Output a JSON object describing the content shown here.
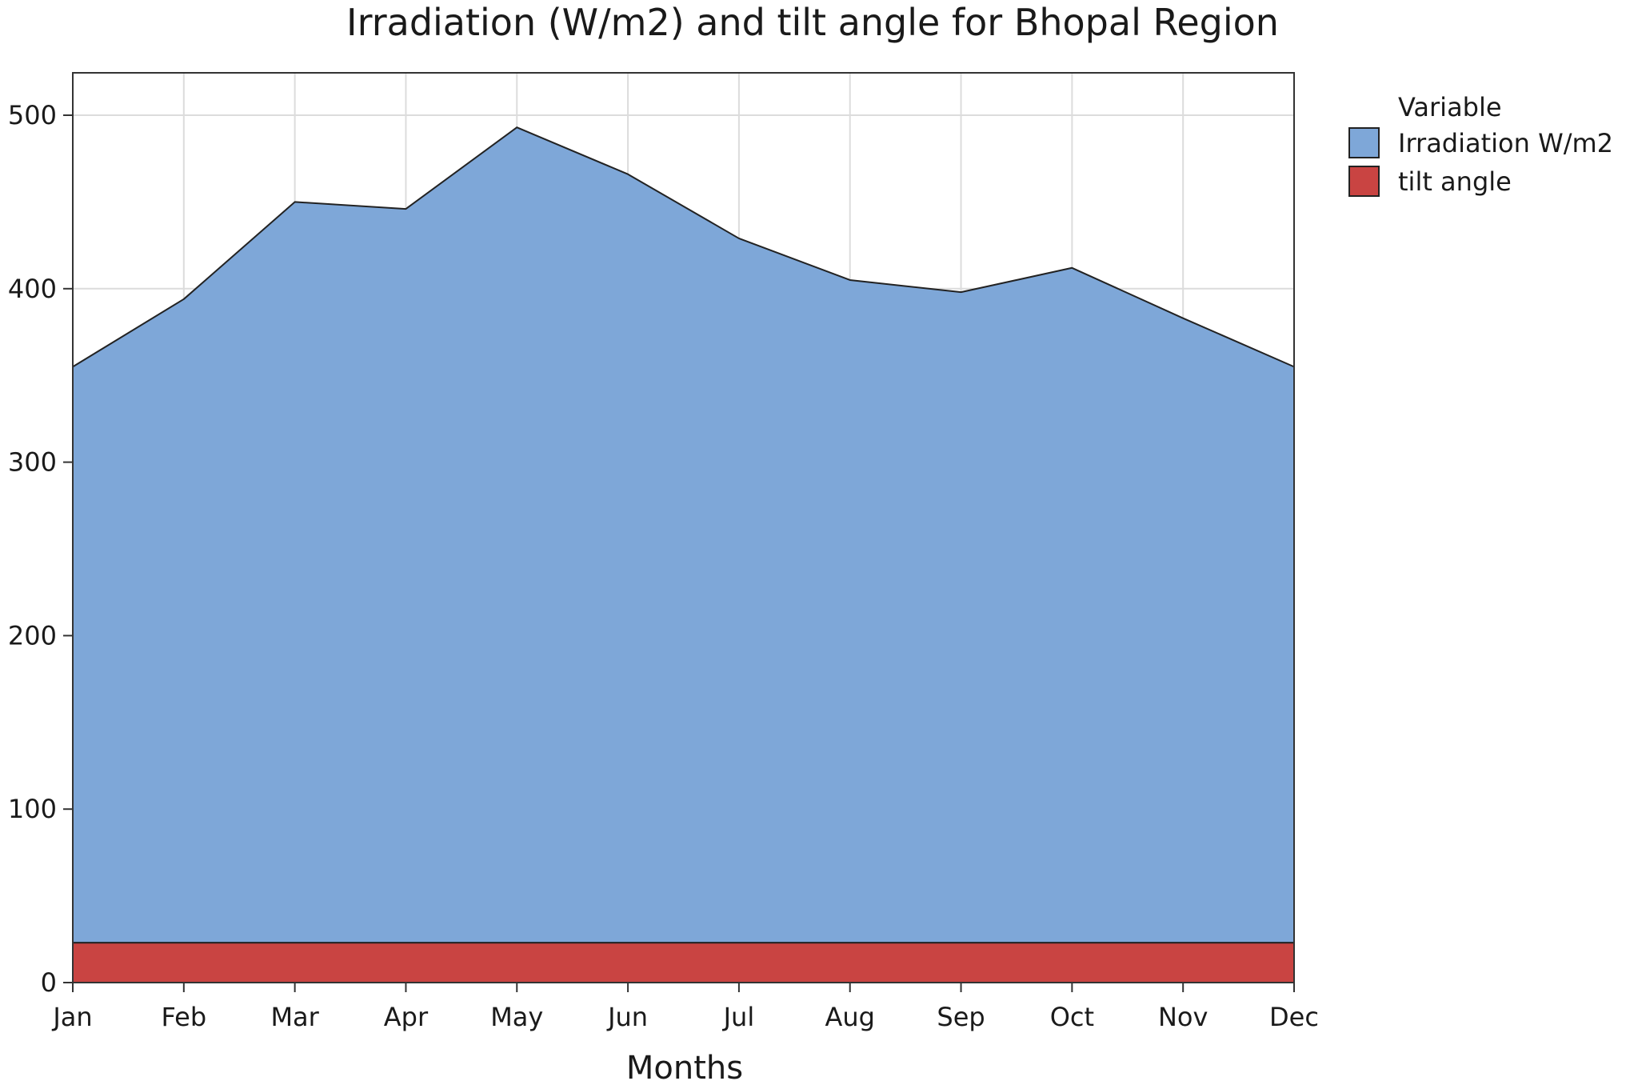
{
  "chart_data": {
    "type": "area",
    "stacked": true,
    "title": "Irradiation (W/m2) and tilt angle for Bhopal Region",
    "xlabel": "Months",
    "ylabel": "",
    "categories": [
      "Jan",
      "Feb",
      "Mar",
      "Apr",
      "May",
      "Jun",
      "Jul",
      "Aug",
      "Sep",
      "Oct",
      "Nov",
      "Dec"
    ],
    "ylim": [
      0,
      525
    ],
    "yticks": [
      0,
      100,
      200,
      300,
      400,
      500
    ],
    "grid": true,
    "legend": {
      "title": "Variable",
      "placement": "right"
    },
    "series": [
      {
        "name": "tilt angle",
        "color": "#c94442",
        "values": [
          23,
          23,
          23,
          23,
          23,
          23,
          23,
          23,
          23,
          23,
          23,
          23
        ]
      },
      {
        "name": "Irradiation W/m2",
        "color": "#7ea7d8",
        "values": [
          332,
          371,
          427,
          423,
          470,
          443,
          406,
          382,
          375,
          389,
          360,
          332
        ]
      }
    ],
    "stacked_totals": [
      355,
      394,
      450,
      446,
      493,
      466,
      429,
      405,
      398,
      412,
      383,
      355
    ]
  }
}
